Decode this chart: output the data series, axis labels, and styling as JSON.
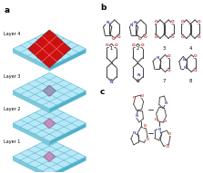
{
  "title_a": "a",
  "title_b": "b",
  "title_c": "c",
  "layer_labels": [
    "Layer 1",
    "Layer 2",
    "Layer 3",
    "Layer 4"
  ],
  "bg_color": "#ffffff",
  "bond_color": "#444444",
  "N_color": "#4444bb",
  "O_color": "#cc3333",
  "face_color": "#b8e8f8",
  "edge_color": "#60c0d8",
  "side_color_l": "#80c8d8",
  "side_color_r": "#50b0c8",
  "grid_color": "#40a8c0",
  "diamond_colors_small": [
    "#c090c0",
    "#c090c0",
    "#a0a0c0"
  ],
  "diamond_color_big": "#cc1111",
  "diamond_edge_big": "#991111",
  "diamond_edge_small": "#886688"
}
